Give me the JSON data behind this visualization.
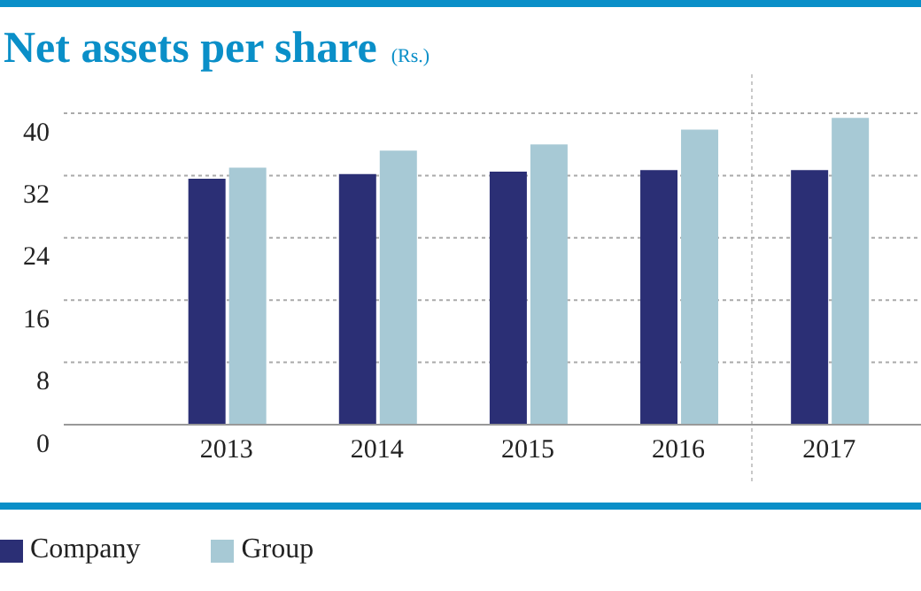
{
  "chart_data": {
    "type": "bar",
    "title": "Net assets per share",
    "subtitle": "(Rs.)",
    "categories": [
      "2013",
      "2014",
      "2015",
      "2016",
      "2017"
    ],
    "series": [
      {
        "name": "Company",
        "color": "#2b2f75",
        "values": [
          31.6,
          32.2,
          32.5,
          32.7,
          32.7
        ]
      },
      {
        "name": "Group",
        "color": "#a7c9d5",
        "values": [
          33.0,
          35.2,
          36.0,
          37.9,
          39.4
        ]
      }
    ],
    "ylim": [
      0,
      40
    ],
    "yticks": [
      0,
      8,
      16,
      24,
      32,
      40
    ],
    "grid": "y",
    "legend": "bottom left"
  }
}
